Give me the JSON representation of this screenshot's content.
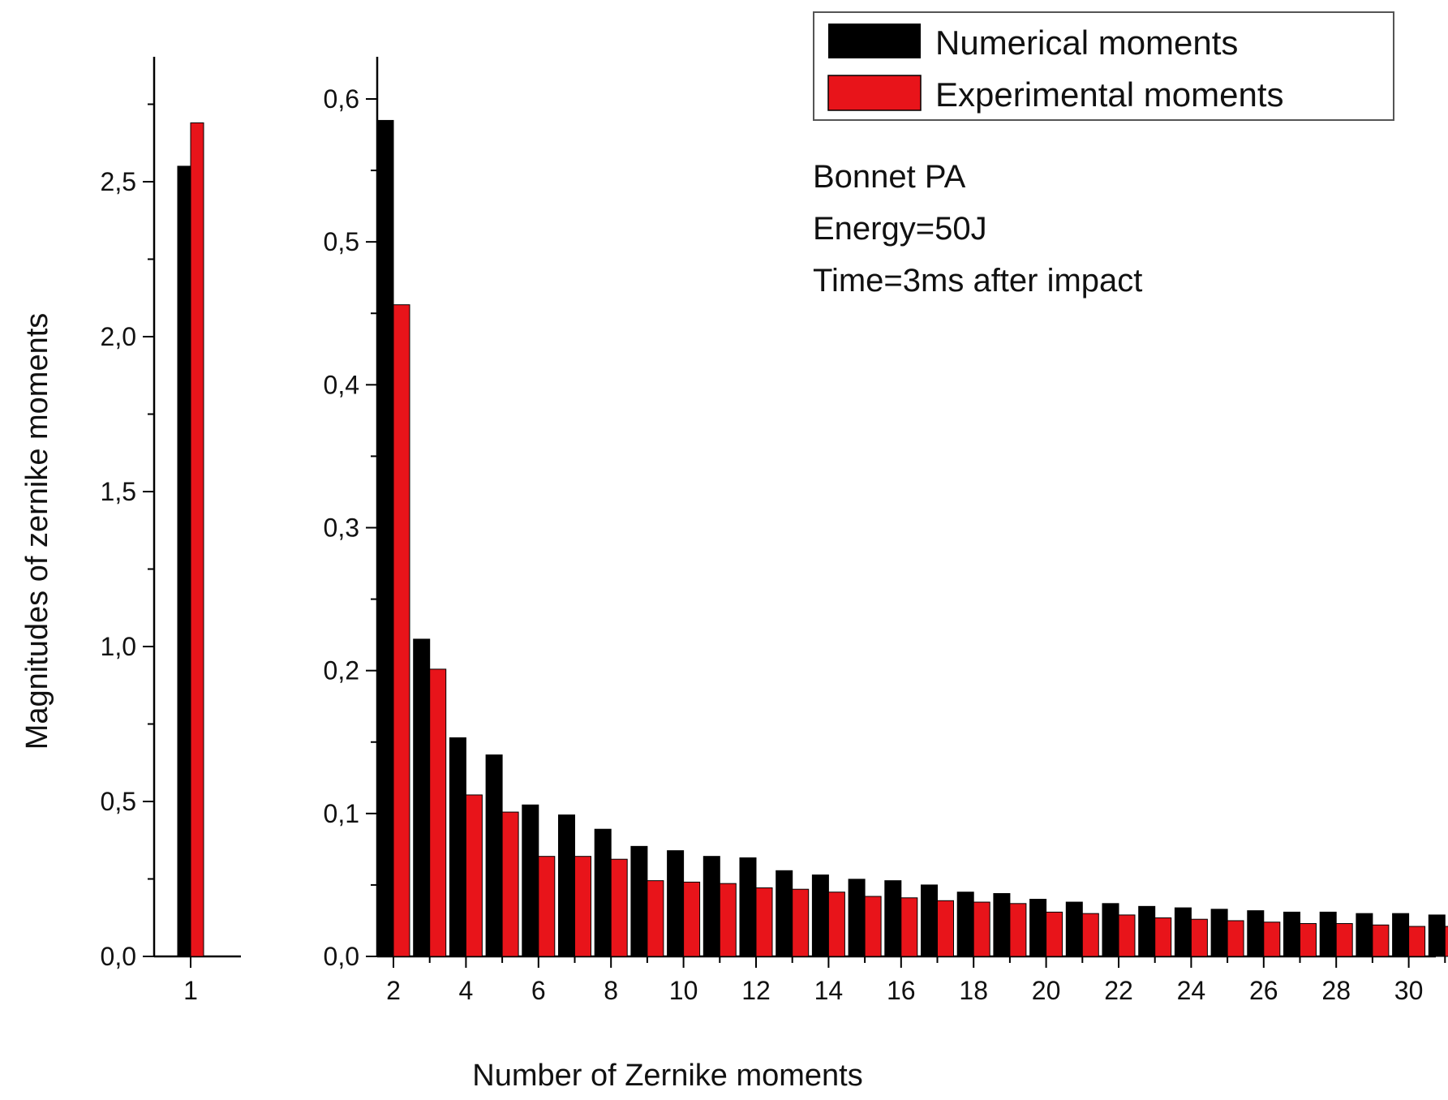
{
  "chart_data": {
    "type": "bar",
    "xlabel": "Number of Zernike moments",
    "ylabel": "Magnitudes of zernike moments",
    "legend": {
      "placement": "top-right",
      "entries": [
        {
          "name": "Numerical moments",
          "color": "#000000"
        },
        {
          "name": "Experimental moments",
          "color": "#e8141a"
        }
      ]
    },
    "annotations": [
      "Bonnet PA",
      "Energy=50J",
      "Time=3ms after impact"
    ],
    "panels": [
      {
        "categories": [
          1
        ],
        "tick_labels": [
          "1"
        ],
        "ylim": [
          0,
          2.8
        ],
        "yticks": [
          "0,0",
          "0,5",
          "1,0",
          "1,5",
          "2,0",
          "2,5"
        ],
        "series": [
          {
            "name": "Numerical moments",
            "color": "#000000",
            "values": [
              2.55
            ]
          },
          {
            "name": "Experimental moments",
            "color": "#e8141a",
            "values": [
              2.69
            ]
          }
        ]
      },
      {
        "categories": [
          2,
          3,
          4,
          5,
          6,
          7,
          8,
          9,
          10,
          11,
          12,
          13,
          14,
          15,
          16,
          17,
          18,
          19,
          20,
          21,
          22,
          23,
          24,
          25,
          26,
          27,
          28,
          29,
          30,
          31
        ],
        "tick_labels": [
          "2",
          "4",
          "6",
          "8",
          "10",
          "12",
          "14",
          "16",
          "18",
          "20",
          "22",
          "24",
          "26",
          "28",
          "30"
        ],
        "ylim": [
          0,
          0.63
        ],
        "yticks": [
          "0,0",
          "0,1",
          "0,2",
          "0,3",
          "0,4",
          "0,5",
          "0,6"
        ],
        "series": [
          {
            "name": "Numerical moments",
            "color": "#000000",
            "values": [
              0.585,
              0.222,
              0.153,
              0.141,
              0.106,
              0.099,
              0.089,
              0.077,
              0.074,
              0.07,
              0.069,
              0.06,
              0.057,
              0.054,
              0.053,
              0.05,
              0.045,
              0.044,
              0.04,
              0.038,
              0.037,
              0.035,
              0.034,
              0.033,
              0.032,
              0.031,
              0.031,
              0.03,
              0.03,
              0.029
            ]
          },
          {
            "name": "Experimental moments",
            "color": "#e8141a",
            "values": [
              0.456,
              0.201,
              0.113,
              0.101,
              0.07,
              0.07,
              0.068,
              0.053,
              0.052,
              0.051,
              0.048,
              0.047,
              0.045,
              0.042,
              0.041,
              0.039,
              0.038,
              0.037,
              0.031,
              0.03,
              0.029,
              0.027,
              0.026,
              0.025,
              0.024,
              0.023,
              0.023,
              0.022,
              0.021,
              0.021
            ]
          }
        ]
      }
    ]
  }
}
